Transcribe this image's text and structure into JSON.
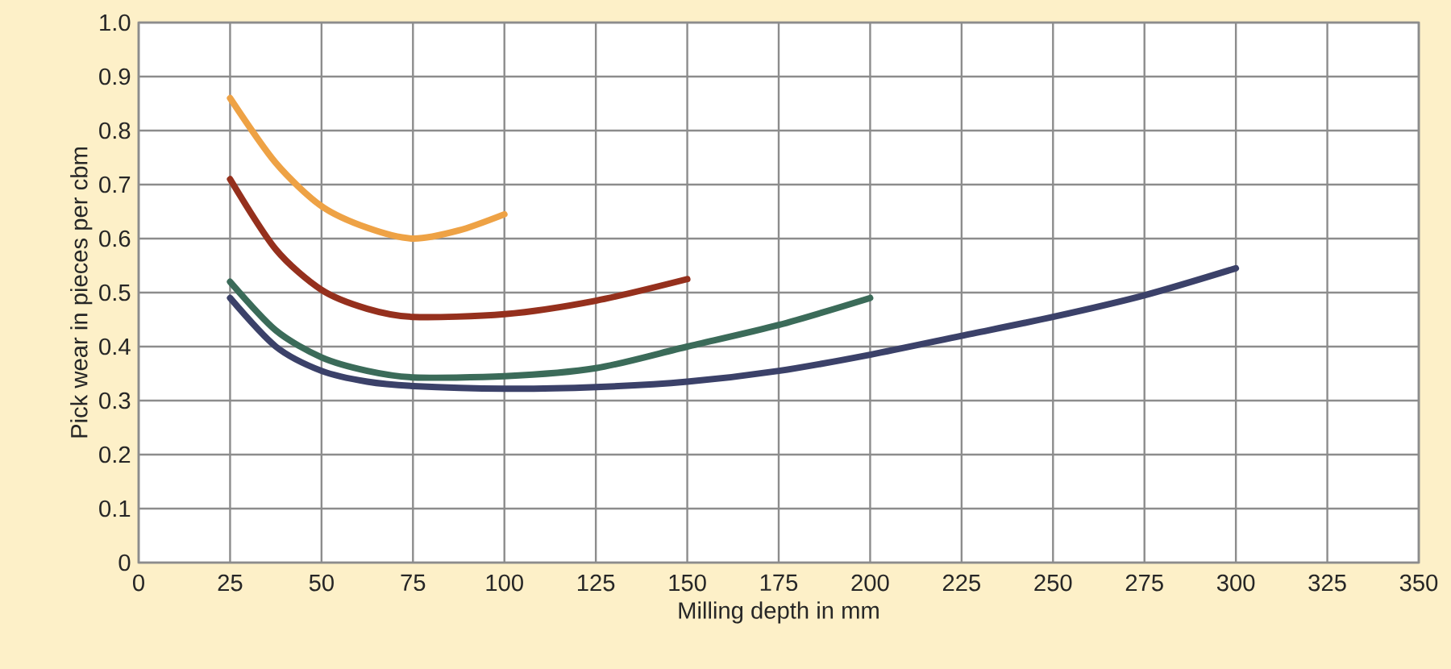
{
  "chart_data": {
    "type": "line",
    "xlabel": "Milling depth in mm",
    "ylabel": "Pick wear in pieces per cbm",
    "xlim": [
      0,
      350
    ],
    "xticks": [
      0,
      25,
      50,
      75,
      100,
      125,
      150,
      175,
      200,
      225,
      250,
      275,
      300,
      325,
      350
    ],
    "ylim": [
      0,
      1.0
    ],
    "yticks": [
      {
        "value": 0,
        "label": "0"
      },
      0.1,
      0.2,
      0.3,
      0.4,
      0.5,
      0.6,
      0.7,
      0.8,
      0.9,
      {
        "value": 1.0,
        "label": "1.0"
      }
    ],
    "grid": true,
    "marker": "none",
    "line_style": "solid",
    "series": [
      {
        "color": "#eea245",
        "x": [
          25,
          37.5,
          50,
          62.5,
          75,
          87.5,
          100
        ],
        "values": [
          0.86,
          0.74,
          0.66,
          0.62,
          0.6,
          0.615,
          0.645
        ]
      },
      {
        "color": "#95301d",
        "x": [
          25,
          37.5,
          50,
          62.5,
          75,
          100,
          125,
          150
        ],
        "values": [
          0.71,
          0.58,
          0.505,
          0.47,
          0.455,
          0.46,
          0.485,
          0.525
        ]
      },
      {
        "color": "#3b6b59",
        "x": [
          25,
          37.5,
          50,
          62.5,
          75,
          100,
          125,
          150,
          175,
          200
        ],
        "values": [
          0.52,
          0.43,
          0.38,
          0.355,
          0.343,
          0.345,
          0.36,
          0.4,
          0.44,
          0.49
        ]
      },
      {
        "color": "#3b4169",
        "x": [
          25,
          37.5,
          50,
          62.5,
          75,
          100,
          125,
          150,
          175,
          200,
          225,
          250,
          275,
          300
        ],
        "values": [
          0.49,
          0.4,
          0.355,
          0.335,
          0.327,
          0.322,
          0.325,
          0.335,
          0.355,
          0.385,
          0.42,
          0.455,
          0.495,
          0.545
        ]
      }
    ]
  }
}
